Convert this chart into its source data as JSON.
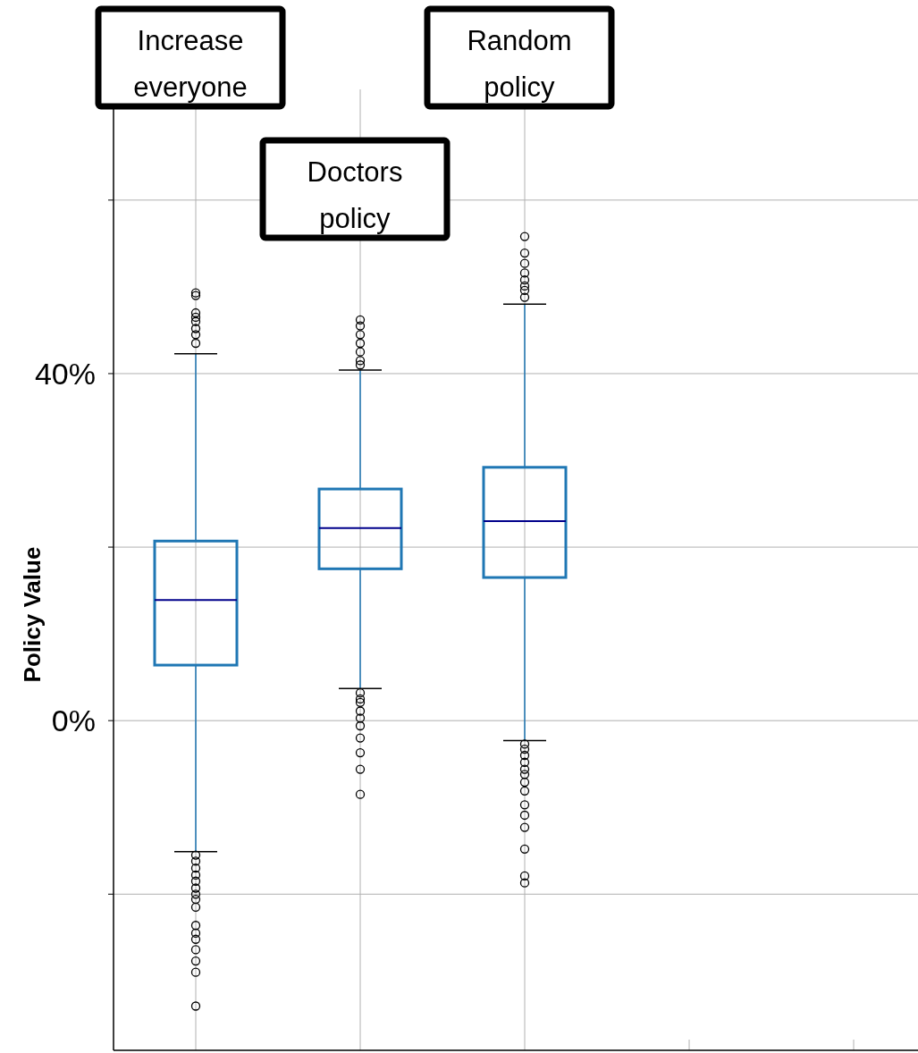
{
  "chart_data": {
    "type": "box",
    "ylabel": "Policy Value",
    "categories": [
      "Increase everyone",
      "Doctors policy",
      "Random policy",
      null,
      null
    ],
    "boxes": [
      {
        "low": -15.1,
        "q1": 6.4,
        "median": 13.9,
        "q3": 20.7,
        "high": 42.3,
        "outliers": [
          49.3,
          49,
          47,
          46.5,
          46,
          45.2,
          44.5,
          43.5,
          -15.5,
          -16.2,
          -17,
          -17.8,
          -18.5,
          -19.3,
          -20,
          -20.6,
          -21.5,
          -23.6,
          -24.5,
          -25.2,
          -26.4,
          -27.7,
          -29,
          -32.9
        ]
      },
      {
        "low": 3.7,
        "q1": 17.5,
        "median": 22.2,
        "q3": 26.7,
        "high": 40.4,
        "outliers": [
          46.2,
          45.5,
          44.5,
          43.5,
          42.5,
          41.5,
          41,
          3.2,
          2.5,
          2.1,
          1.1,
          0.3,
          -0.6,
          -2,
          -3.7,
          -5.6,
          -8.5
        ]
      },
      {
        "low": -2.3,
        "q1": 16.5,
        "median": 23,
        "q3": 29.2,
        "high": 48,
        "outliers": [
          55.8,
          53.9,
          52.7,
          51.6,
          50.8,
          50.1,
          49.6,
          48.8,
          -2.7,
          -3.3,
          -4,
          -4.8,
          -5.6,
          -6.2,
          -7.1,
          -8.1,
          -9.7,
          -10.9,
          -12.3,
          -14.8,
          -17.9,
          -18.7
        ]
      },
      null,
      null
    ],
    "color": "#1f77b4",
    "ylim": [
      -38,
      70.7
    ],
    "yticks": [
      {
        "value": 60,
        "label": null
      },
      {
        "value": 40,
        "label": "40%"
      },
      {
        "value": 20,
        "label": null
      },
      {
        "value": 0,
        "label": "0%"
      },
      {
        "value": -20,
        "label": null
      }
    ],
    "grid": true
  }
}
